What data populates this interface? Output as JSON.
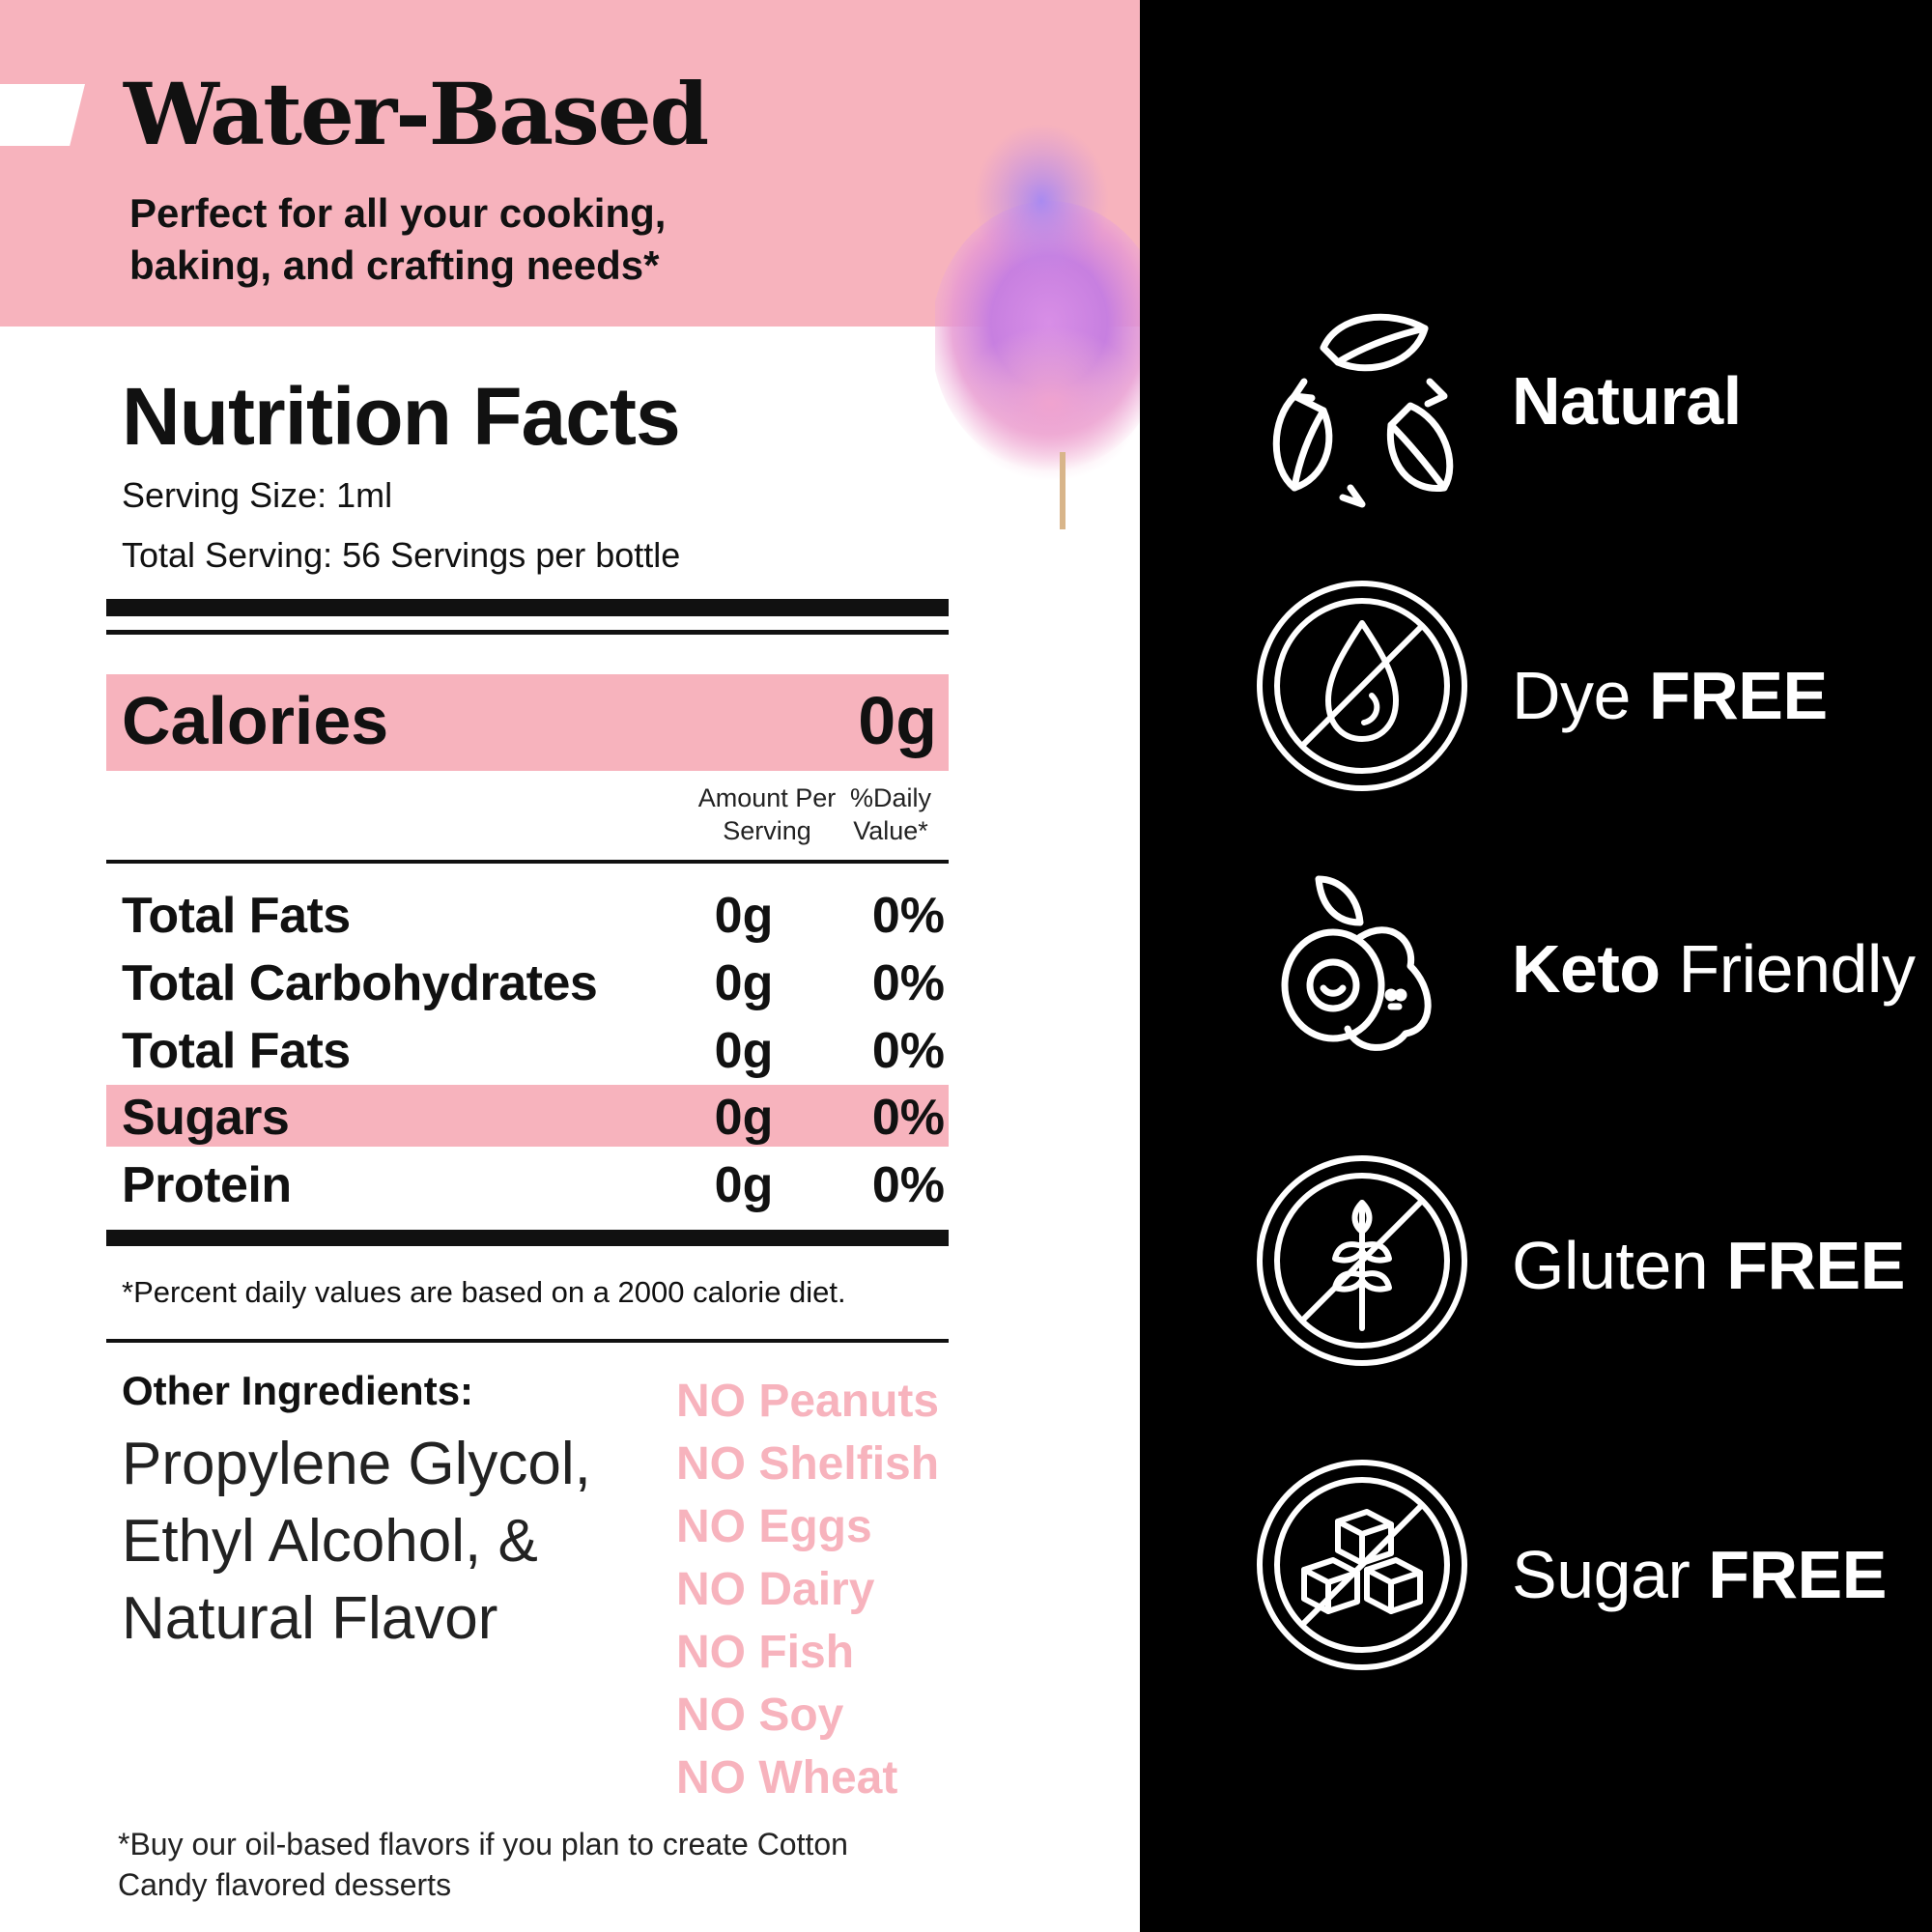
{
  "header": {
    "title": "Water-Based",
    "subtitle": "Perfect for all your cooking, baking, and crafting needs*"
  },
  "nutrition": {
    "title": "Nutrition Facts",
    "serving_size": "Serving Size: 1ml",
    "total_serving": "Total Serving: 56 Servings per bottle",
    "calories_label": "Calories",
    "calories_value": "0g",
    "col_amount": "Amount Per Serving",
    "col_daily_value": "%Daily Value*",
    "rows": [
      {
        "label": "Total Fats",
        "amount": "0g",
        "dv": "0%"
      },
      {
        "label": "Total Carbohydrates",
        "amount": "0g",
        "dv": "0%"
      },
      {
        "label": "Total Fats",
        "amount": "0g",
        "dv": "0%"
      },
      {
        "label": "Sugars",
        "amount": "0g",
        "dv": "0%"
      },
      {
        "label": "Protein",
        "amount": "0g",
        "dv": "0%"
      }
    ],
    "footnote": "*Percent daily values are based on a 2000 calorie diet."
  },
  "ingredients": {
    "label": "Other Ingredients:",
    "text": "Propylene Glycol, Ethyl Alcohol, & Natural Flavor",
    "allergens": [
      "NO Peanuts",
      "NO Shelfish",
      "NO Eggs",
      "NO Dairy",
      "NO Fish",
      "NO Soy",
      "NO Wheat"
    ]
  },
  "bottom_note": "*Buy our oil-based flavors if you plan to create Cotton Candy flavored desserts",
  "badges": [
    {
      "icon": "leaves-cycle-icon",
      "bold": "Natural"
    },
    {
      "icon": "no-dye-drop-icon",
      "regular": "Dye",
      "bold": "FREE"
    },
    {
      "icon": "avocado-icon",
      "bold": "Keto",
      "regular": "Friendly"
    },
    {
      "icon": "no-gluten-wheat-icon",
      "regular": "Gluten",
      "bold": "FREE"
    },
    {
      "icon": "no-sugar-cubes-icon",
      "regular": "Sugar",
      "bold": "FREE"
    }
  ],
  "colors": {
    "pink": "#f7b3bd",
    "black": "#000000",
    "white": "#ffffff"
  }
}
